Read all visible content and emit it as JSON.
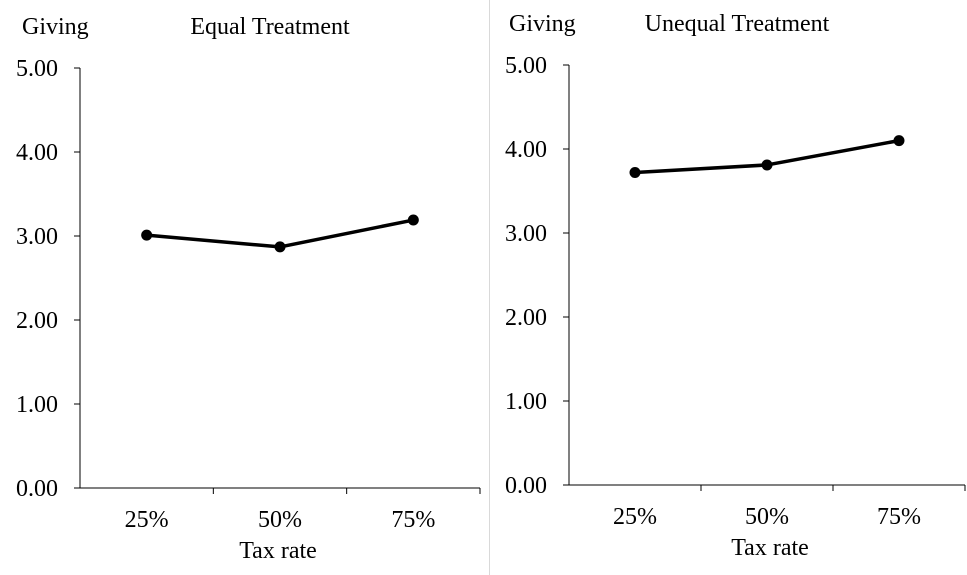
{
  "chart_data": [
    {
      "type": "line",
      "ylabel": "Giving",
      "title": "Equal Treatment",
      "xlabel": "Tax rate",
      "categories": [
        "25%",
        "50%",
        "75%"
      ],
      "values": [
        3.01,
        2.87,
        3.19
      ],
      "ylim": [
        0,
        5
      ],
      "yticks": [
        "0.00",
        "1.00",
        "2.00",
        "3.00",
        "4.00",
        "5.00"
      ],
      "grid": false
    },
    {
      "type": "line",
      "ylabel": "Giving",
      "title": "Unequal Treatment",
      "xlabel": "Tax rate",
      "categories": [
        "25%",
        "50%",
        "75%"
      ],
      "values": [
        3.72,
        3.81,
        4.1
      ],
      "ylim": [
        0,
        5
      ],
      "yticks": [
        "0.00",
        "1.00",
        "2.00",
        "3.00",
        "4.00",
        "5.00"
      ],
      "grid": false
    }
  ]
}
